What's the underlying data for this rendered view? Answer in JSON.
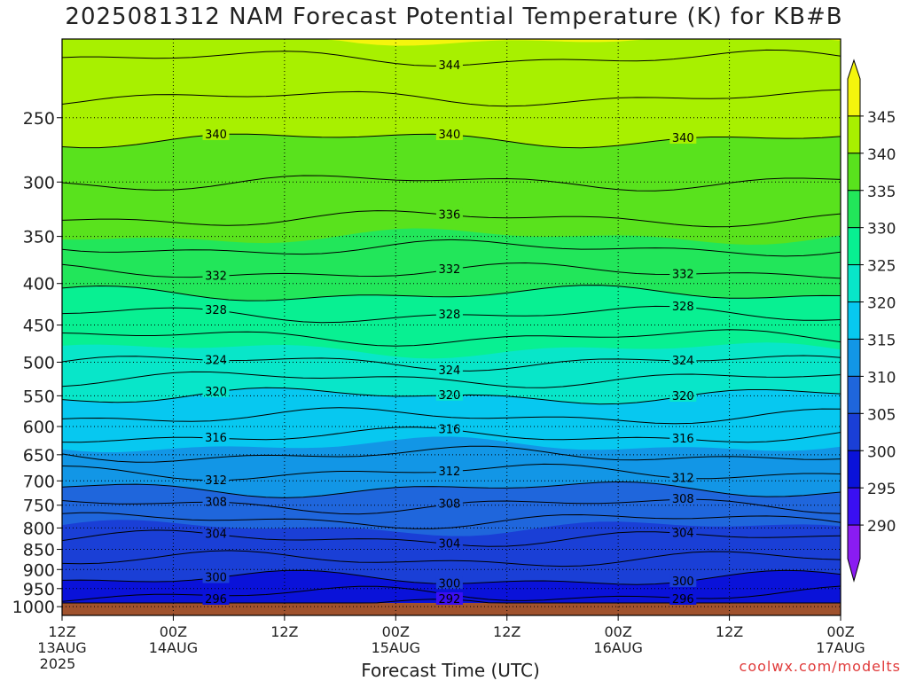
{
  "title": "2025081312 NAM Forecast Potential Temperature (K) for KB#B",
  "credit": "coolwx.com/modelts",
  "chart_data": {
    "type": "contour",
    "title": "2025081312 NAM Forecast Potential Temperature (K) for KB#B",
    "xlabel": "Forecast Time (UTC)",
    "ylabel": "",
    "x_ticks": [
      {
        "hour": 0,
        "label": "12Z",
        "sub": "13AUG",
        "sub2": "2025"
      },
      {
        "hour": 12,
        "label": "00Z",
        "sub": "14AUG",
        "sub2": ""
      },
      {
        "hour": 24,
        "label": "12Z",
        "sub": "",
        "sub2": ""
      },
      {
        "hour": 36,
        "label": "00Z",
        "sub": "15AUG",
        "sub2": ""
      },
      {
        "hour": 48,
        "label": "12Z",
        "sub": "",
        "sub2": ""
      },
      {
        "hour": 60,
        "label": "00Z",
        "sub": "16AUG",
        "sub2": ""
      },
      {
        "hour": 72,
        "label": "12Z",
        "sub": "",
        "sub2": ""
      },
      {
        "hour": 84,
        "label": "00Z",
        "sub": "17AUG",
        "sub2": ""
      }
    ],
    "xlim_hours": [
      0,
      84
    ],
    "y_ticks_hPa": [
      250,
      300,
      350,
      400,
      450,
      500,
      550,
      600,
      650,
      700,
      750,
      800,
      850,
      900,
      950,
      1000
    ],
    "y_scale": "log-pressure",
    "ylim_hPa": [
      200,
      1025
    ],
    "colorbar": {
      "levels": [
        290,
        295,
        300,
        305,
        310,
        315,
        320,
        325,
        330,
        335,
        340,
        345
      ],
      "labels": [
        "290",
        "295",
        "300",
        "305",
        "310",
        "315",
        "320",
        "325",
        "330",
        "335",
        "340",
        "345"
      ],
      "colors": [
        "#8a1cf2",
        "#3a0ff2",
        "#0a12d9",
        "#1a3fd6",
        "#1f66dc",
        "#1296e6",
        "#07c8f0",
        "#08e6c9",
        "#08f092",
        "#22e65a",
        "#59e21d",
        "#a8f000",
        "#f4f50d"
      ]
    },
    "contour_interval_K": 4,
    "contour_labels": [
      "344",
      "340",
      "340",
      "332",
      "340",
      "332",
      "336",
      "332",
      "328",
      "328",
      "328",
      "324",
      "324",
      "324",
      "320",
      "320",
      "320",
      "316",
      "316",
      "316",
      "312",
      "312",
      "312",
      "308",
      "308",
      "308",
      "304",
      "304",
      "304",
      "300",
      "300",
      "300",
      "296",
      "296",
      "296",
      "292"
    ],
    "theta_profile_K": [
      {
        "hPa": 1000,
        "theta": 296
      },
      {
        "hPa": 950,
        "theta": 299
      },
      {
        "hPa": 900,
        "theta": 301
      },
      {
        "hPa": 850,
        "theta": 303
      },
      {
        "hPa": 800,
        "theta": 305
      },
      {
        "hPa": 750,
        "theta": 308
      },
      {
        "hPa": 700,
        "theta": 311
      },
      {
        "hPa": 650,
        "theta": 314
      },
      {
        "hPa": 600,
        "theta": 317
      },
      {
        "hPa": 550,
        "theta": 320
      },
      {
        "hPa": 500,
        "theta": 324
      },
      {
        "hPa": 450,
        "theta": 327
      },
      {
        "hPa": 400,
        "theta": 331
      },
      {
        "hPa": 350,
        "theta": 335
      },
      {
        "hPa": 300,
        "theta": 338
      },
      {
        "hPa": 250,
        "theta": 341
      },
      {
        "hPa": 200,
        "theta": 345
      }
    ],
    "grid": true,
    "terrain_color": "#a0522d"
  }
}
